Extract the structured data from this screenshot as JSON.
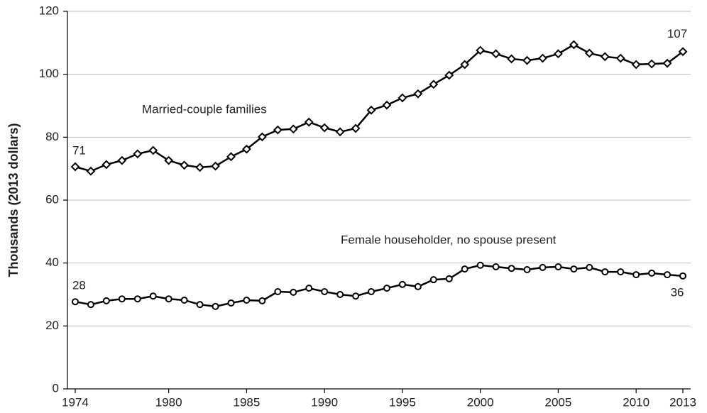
{
  "chart_data": {
    "type": "line",
    "ylabel": "Thousands (2013 dollars)",
    "x": [
      1974,
      1975,
      1976,
      1977,
      1978,
      1979,
      1980,
      1981,
      1982,
      1983,
      1984,
      1985,
      1986,
      1987,
      1988,
      1989,
      1990,
      1991,
      1992,
      1993,
      1994,
      1995,
      1996,
      1997,
      1998,
      1999,
      2000,
      2001,
      2002,
      2003,
      2004,
      2005,
      2006,
      2007,
      2008,
      2009,
      2010,
      2011,
      2012,
      2013
    ],
    "series": [
      {
        "name": "Married-couple families",
        "color": "#000000",
        "marker": "diamond",
        "values": [
          70.6,
          69.2,
          71.3,
          72.6,
          74.7,
          75.8,
          72.6,
          71.1,
          70.4,
          70.8,
          73.8,
          76.2,
          80.1,
          82.3,
          82.6,
          84.8,
          83.0,
          81.7,
          82.8,
          88.6,
          90.2,
          92.5,
          93.8,
          96.8,
          99.7,
          103.1,
          107.6,
          106.5,
          104.9,
          104.4,
          105.1,
          106.5,
          109.4,
          106.7,
          105.6,
          105.1,
          103.1,
          103.3,
          103.5,
          107.2
        ],
        "value_labels": [
          "71",
          null,
          null,
          null,
          null,
          null,
          null,
          null,
          null,
          null,
          null,
          null,
          null,
          null,
          null,
          null,
          null,
          null,
          null,
          null,
          null,
          null,
          null,
          null,
          null,
          null,
          null,
          null,
          null,
          null,
          null,
          null,
          null,
          null,
          null,
          null,
          null,
          null,
          null,
          "107"
        ]
      },
      {
        "name": "Female householder, no spouse present",
        "color": "#000000",
        "marker": "circle",
        "values": [
          27.7,
          26.8,
          28.0,
          28.6,
          28.6,
          29.5,
          28.6,
          28.2,
          26.8,
          26.2,
          27.3,
          28.2,
          28.0,
          30.9,
          30.7,
          32.0,
          30.9,
          30.0,
          29.5,
          30.9,
          32.0,
          33.2,
          32.5,
          34.7,
          35.0,
          38.1,
          39.3,
          38.8,
          38.3,
          37.9,
          38.6,
          38.8,
          38.1,
          38.6,
          37.2,
          37.2,
          36.3,
          36.8,
          36.3,
          35.9
        ],
        "value_labels": [
          "28",
          null,
          null,
          null,
          null,
          null,
          null,
          null,
          null,
          null,
          null,
          null,
          null,
          null,
          null,
          null,
          null,
          null,
          null,
          null,
          null,
          null,
          null,
          null,
          null,
          null,
          null,
          null,
          null,
          null,
          null,
          null,
          null,
          null,
          null,
          null,
          null,
          null,
          null,
          "36"
        ]
      }
    ],
    "xlim": [
      1973.5,
      2013.5
    ],
    "xticks": [
      1974,
      1980,
      1985,
      1990,
      1995,
      2000,
      2005,
      2010,
      2013
    ],
    "ylim": [
      0,
      120
    ],
    "yticks": [
      0,
      20,
      40,
      60,
      80,
      100,
      120
    ],
    "grid": true
  }
}
